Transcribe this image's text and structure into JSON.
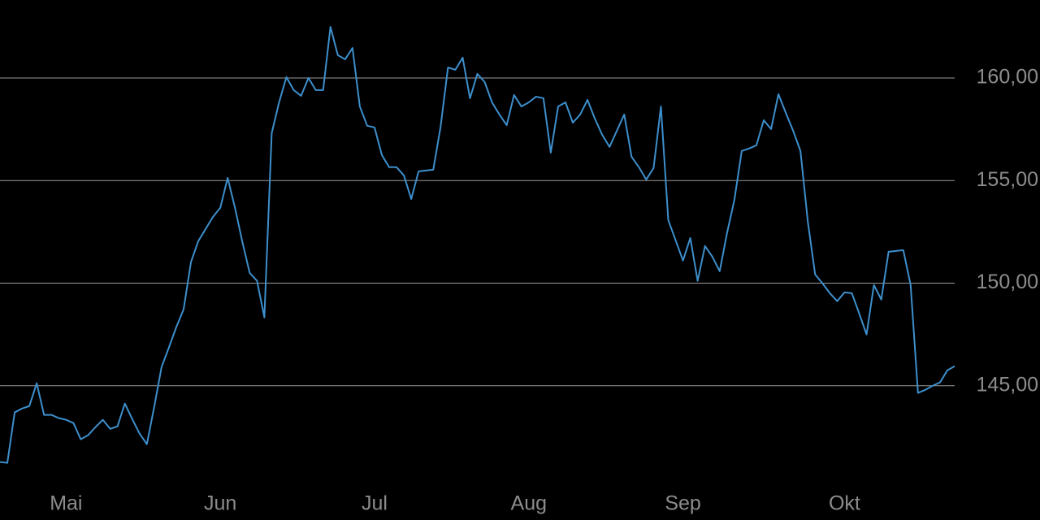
{
  "chart_data": {
    "type": "line",
    "categories": [
      null,
      null,
      null,
      null,
      null,
      null,
      null,
      null,
      null,
      "Mai",
      null,
      null,
      null,
      null,
      null,
      null,
      null,
      null,
      null,
      null,
      null,
      null,
      null,
      null,
      null,
      null,
      null,
      null,
      null,
      null,
      "Jun",
      null,
      null,
      null,
      null,
      null,
      null,
      null,
      null,
      null,
      null,
      null,
      null,
      null,
      null,
      null,
      null,
      null,
      null,
      null,
      null,
      "Jul",
      null,
      null,
      null,
      null,
      null,
      null,
      null,
      null,
      null,
      null,
      null,
      null,
      null,
      null,
      null,
      null,
      null,
      null,
      null,
      null,
      "Aug",
      null,
      null,
      null,
      null,
      null,
      null,
      null,
      null,
      null,
      null,
      null,
      null,
      null,
      null,
      null,
      null,
      null,
      null,
      null,
      null,
      "Sep",
      null,
      null,
      null,
      null,
      null,
      null,
      null,
      null,
      null,
      null,
      null,
      null,
      null,
      null,
      null,
      null,
      null,
      null,
      null,
      null,
      null,
      "Okt",
      null,
      null,
      null,
      null,
      null,
      null,
      null,
      null,
      null,
      null,
      null,
      null,
      null,
      null,
      null
    ],
    "values": [
      141.28,
      141.24,
      143.7,
      143.89,
      144.01,
      145.12,
      143.58,
      143.58,
      143.42,
      143.34,
      143.18,
      142.39,
      142.59,
      142.98,
      143.34,
      142.9,
      143.02,
      144.13,
      143.38,
      142.67,
      142.15,
      143.97,
      145.91,
      146.86,
      147.85,
      148.72,
      151.02,
      152.05,
      152.64,
      153.23,
      153.67,
      155.13,
      153.67,
      152.01,
      150.5,
      150.11,
      148.33,
      157.31,
      158.81,
      160.04,
      159.41,
      159.13,
      160.0,
      159.41,
      159.41,
      162.49,
      161.11,
      160.91,
      161.46,
      158.61,
      157.67,
      157.59,
      156.24,
      155.65,
      155.65,
      155.25,
      154.1,
      155.45,
      155.49,
      155.53,
      157.63,
      160.51,
      160.4,
      160.99,
      159.01,
      160.2,
      159.8,
      158.81,
      158.22,
      157.7,
      159.17,
      158.61,
      158.81,
      159.09,
      159.01,
      156.36,
      158.61,
      158.81,
      157.82,
      158.22,
      158.93,
      158.02,
      157.23,
      156.64,
      157.43,
      158.22,
      156.16,
      155.65,
      155.05,
      155.61,
      158.61,
      153.07,
      152.09,
      151.1,
      152.2,
      150.11,
      151.81,
      151.29,
      150.58,
      152.44,
      154.06,
      156.44,
      156.56,
      156.72,
      157.94,
      157.51,
      159.21,
      158.3,
      157.43,
      156.44,
      153.0,
      150.42,
      149.99,
      149.51,
      149.12,
      149.55,
      149.51,
      148.52,
      147.5,
      149.91,
      149.2,
      151.53,
      151.57,
      151.61,
      149.91,
      144.65,
      144.8,
      145.0,
      145.16,
      145.75,
      145.95
    ],
    "color": "#3d8fcc",
    "ylim": [
      140,
      163.8
    ],
    "yticks": [
      {
        "value": 145,
        "label": "145,00"
      },
      {
        "value": 150,
        "label": "150,00"
      },
      {
        "value": 155,
        "label": "155,00"
      },
      {
        "value": 160,
        "label": "160,00"
      }
    ],
    "grid": true
  }
}
